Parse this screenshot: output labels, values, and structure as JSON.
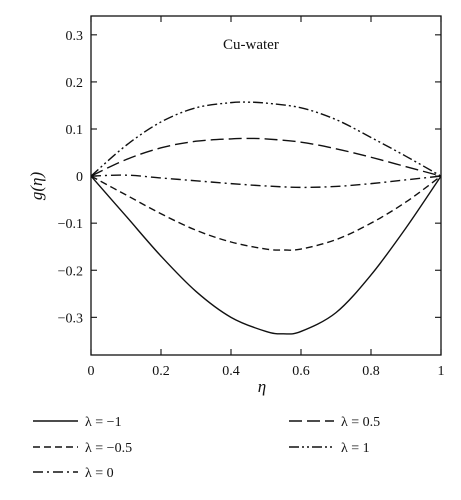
{
  "chart_data": {
    "type": "line",
    "annotation": "Cu-water",
    "xlabel": "η",
    "ylabel": "g(η)",
    "xlim": [
      0,
      1
    ],
    "ylim": [
      -0.38,
      0.34
    ],
    "x_ticks": [
      0,
      0.2,
      0.4,
      0.6,
      0.8,
      1
    ],
    "x_tick_labels": [
      "0",
      "0.2",
      "0.4",
      "0.6",
      "0.8",
      "1"
    ],
    "y_ticks": [
      -0.3,
      -0.2,
      -0.1,
      0,
      0.1,
      0.2,
      0.3
    ],
    "y_tick_labels": [
      "−0.3",
      "−0.2",
      "−0.1",
      "0",
      "0.1",
      "0.2",
      "0.3"
    ],
    "grid": false,
    "legend_position": "bottom",
    "series": [
      {
        "name": "λ = −1",
        "style": "solid",
        "x": [
          0,
          0.1,
          0.2,
          0.3,
          0.4,
          0.5,
          0.55,
          0.6,
          0.7,
          0.8,
          0.9,
          1
        ],
        "y": [
          0,
          -0.085,
          -0.17,
          -0.245,
          -0.3,
          -0.33,
          -0.335,
          -0.33,
          -0.29,
          -0.21,
          -0.11,
          0
        ]
      },
      {
        "name": "λ = −0.5",
        "style": "dashed",
        "x": [
          0,
          0.1,
          0.2,
          0.3,
          0.4,
          0.5,
          0.55,
          0.6,
          0.7,
          0.8,
          0.9,
          1
        ],
        "y": [
          0,
          -0.04,
          -0.08,
          -0.115,
          -0.14,
          -0.155,
          -0.157,
          -0.155,
          -0.135,
          -0.1,
          -0.055,
          0
        ]
      },
      {
        "name": "λ = 0",
        "style": "dashdot",
        "x": [
          0,
          0.1,
          0.2,
          0.3,
          0.4,
          0.5,
          0.6,
          0.7,
          0.8,
          0.9,
          1
        ],
        "y": [
          0,
          0.002,
          -0.004,
          -0.01,
          -0.016,
          -0.021,
          -0.024,
          -0.022,
          -0.016,
          -0.008,
          0
        ]
      },
      {
        "name": "λ = 0.5",
        "style": "longdash",
        "x": [
          0,
          0.1,
          0.2,
          0.3,
          0.4,
          0.45,
          0.5,
          0.6,
          0.7,
          0.8,
          0.9,
          1
        ],
        "y": [
          0,
          0.035,
          0.06,
          0.074,
          0.079,
          0.08,
          0.079,
          0.072,
          0.058,
          0.04,
          0.02,
          0
        ]
      },
      {
        "name": "λ = 1",
        "style": "dashdotdot",
        "x": [
          0,
          0.1,
          0.2,
          0.3,
          0.4,
          0.45,
          0.5,
          0.6,
          0.7,
          0.8,
          0.9,
          1
        ],
        "y": [
          0,
          0.065,
          0.115,
          0.145,
          0.156,
          0.157,
          0.155,
          0.145,
          0.12,
          0.082,
          0.042,
          0
        ]
      }
    ]
  }
}
